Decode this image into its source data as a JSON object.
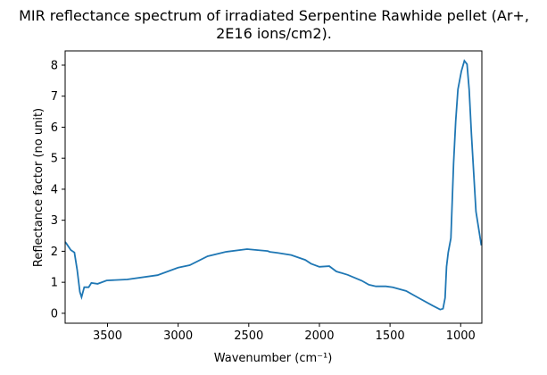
{
  "chart_data": {
    "type": "line",
    "title_line1": "MIR reflectance spectrum of irradiated Serpentine Rawhide pellet (Ar+,",
    "title_line2": "2E16 ions/cm2).",
    "xlabel": "Wavenumber (cm⁻¹)",
    "ylabel": "Reflectance factor (no unit)",
    "xlim": [
      3800,
      850
    ],
    "ylim": [
      -0.32,
      8.46
    ],
    "x_reversed": true,
    "grid": false,
    "xticks": [
      3500,
      3000,
      2500,
      2000,
      1500,
      1000
    ],
    "yticks": [
      0,
      1,
      2,
      3,
      4,
      5,
      6,
      7,
      8
    ],
    "color": "#1f77b4",
    "series": [
      {
        "x": [
          3800,
          3791,
          3760,
          3734,
          3715,
          3696,
          3684,
          3665,
          3633,
          3614,
          3570,
          3506,
          3361,
          3146,
          3000,
          2918,
          2791,
          2664,
          2512,
          2420,
          2367,
          2350,
          2300,
          2200,
          2100,
          2060,
          2000,
          1930,
          1880,
          1800,
          1700,
          1650,
          1600,
          1530,
          1481,
          1386,
          1300,
          1200,
          1145,
          1125,
          1110,
          1100,
          1088,
          1069,
          1050,
          1035,
          1019,
          995,
          974,
          955,
          940,
          924,
          892,
          854
        ],
        "y": [
          2.3,
          2.25,
          2.04,
          1.96,
          1.4,
          0.69,
          0.52,
          0.84,
          0.84,
          0.98,
          0.95,
          1.06,
          1.09,
          1.23,
          1.47,
          1.55,
          1.84,
          1.98,
          2.07,
          2.03,
          2.01,
          1.98,
          1.95,
          1.88,
          1.72,
          1.6,
          1.5,
          1.52,
          1.35,
          1.24,
          1.05,
          0.92,
          0.87,
          0.87,
          0.84,
          0.72,
          0.5,
          0.25,
          0.12,
          0.15,
          0.5,
          1.5,
          1.96,
          2.42,
          4.83,
          6.2,
          7.22,
          7.8,
          8.14,
          8.03,
          7.2,
          5.78,
          3.28,
          2.19
        ]
      }
    ]
  }
}
